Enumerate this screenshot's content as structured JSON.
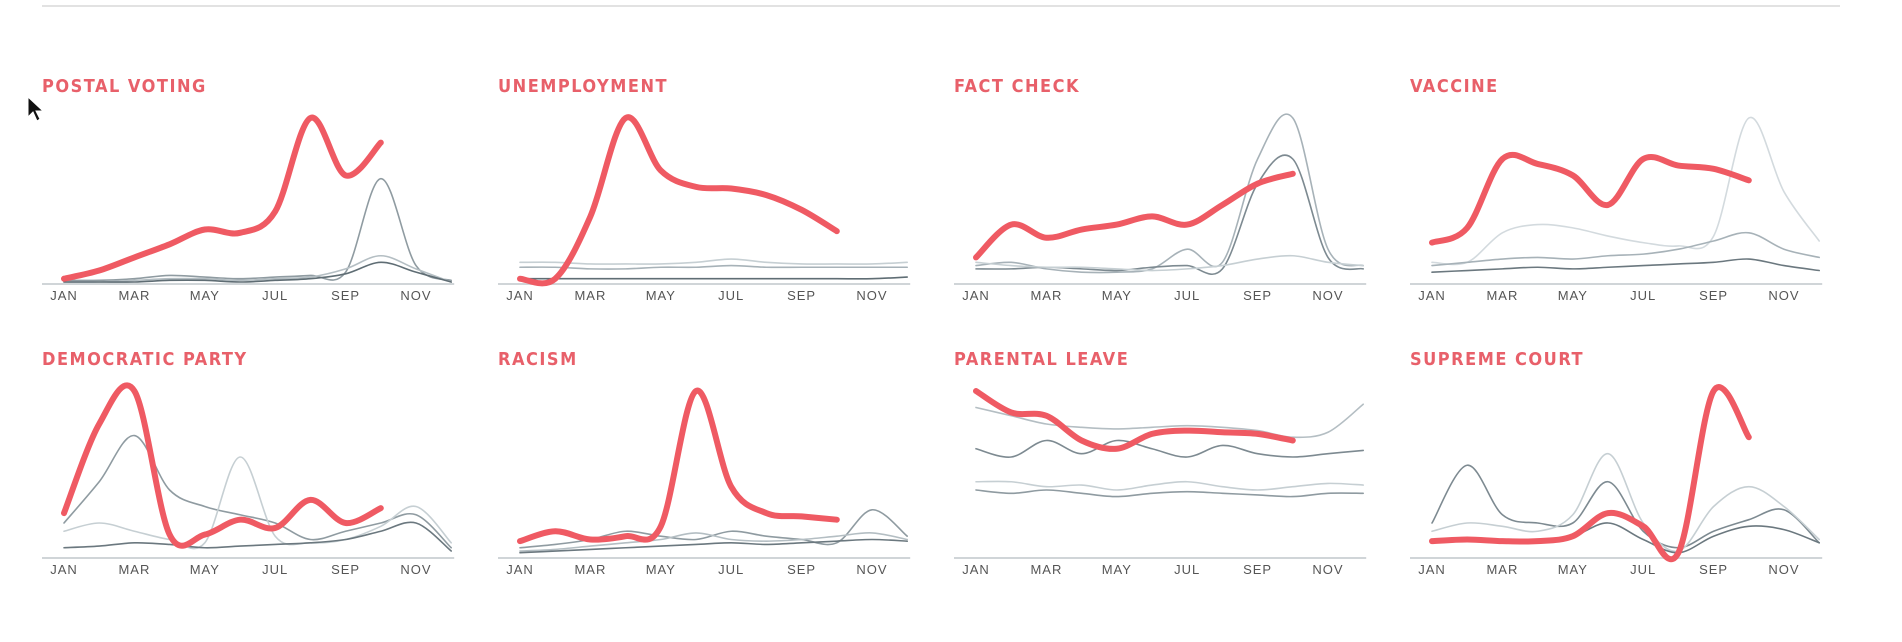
{
  "chart_data": [
    {
      "type": "line",
      "title": "POSTAL VOTING",
      "categories": [
        "JAN",
        null,
        "MAR",
        null,
        "MAY",
        null,
        "JUL",
        null,
        "SEP",
        null,
        "NOV",
        null
      ],
      "ylim": [
        0,
        100
      ],
      "series": [
        {
          "color": "#8f9ba1",
          "values": [
            1,
            1,
            2,
            4,
            3,
            2,
            3,
            4,
            6,
            63,
            10,
            1
          ]
        },
        {
          "color": "#b4bec3",
          "values": [
            0,
            0,
            1,
            2,
            2,
            1,
            2,
            3,
            8,
            16,
            8,
            0
          ]
        },
        {
          "color": "#5f6d74",
          "values": [
            0,
            0,
            0,
            1,
            1,
            0,
            1,
            2,
            5,
            12,
            6,
            0
          ]
        },
        {
          "color": "#ef5a63",
          "values": [
            2,
            7,
            15,
            23,
            32,
            30,
            43,
            100,
            65,
            85,
            null,
            null
          ]
        }
      ]
    },
    {
      "type": "line",
      "title": "UNEMPLOYMENT",
      "categories": [
        "JAN",
        null,
        "MAR",
        null,
        "MAY",
        null,
        "JUL",
        null,
        "SEP",
        null,
        "NOV",
        null
      ],
      "ylim": [
        0,
        100
      ],
      "series": [
        {
          "color": "#c6cfd3",
          "values": [
            12,
            12,
            11,
            11,
            11,
            12,
            14,
            12,
            11,
            11,
            11,
            12
          ]
        },
        {
          "color": "#a7b2b8",
          "values": [
            9,
            9,
            8,
            8,
            9,
            9,
            10,
            9,
            9,
            9,
            9,
            9
          ]
        },
        {
          "color": "#5f6d74",
          "values": [
            2,
            2,
            2,
            2,
            2,
            2,
            2,
            2,
            2,
            2,
            2,
            3
          ]
        },
        {
          "color": "#ef5a63",
          "values": [
            2,
            2,
            40,
            100,
            68,
            58,
            57,
            53,
            44,
            31,
            null,
            null
          ]
        }
      ]
    },
    {
      "type": "line",
      "title": "FACT CHECK",
      "categories": [
        "JAN",
        null,
        "MAR",
        null,
        "MAY",
        null,
        "JUL",
        null,
        "SEP",
        null,
        "NOV",
        null
      ],
      "ylim": [
        0,
        100
      ],
      "series": [
        {
          "color": "#a7b2b8",
          "values": [
            10,
            12,
            8,
            6,
            6,
            8,
            20,
            12,
            75,
            100,
            20,
            10
          ]
        },
        {
          "color": "#7d8a91",
          "values": [
            8,
            8,
            9,
            8,
            7,
            9,
            10,
            8,
            60,
            75,
            15,
            8
          ]
        },
        {
          "color": "#c6cfd3",
          "values": [
            12,
            10,
            9,
            9,
            8,
            7,
            8,
            10,
            14,
            16,
            12,
            10
          ]
        },
        {
          "color": "#ef5a63",
          "values": [
            15,
            35,
            27,
            32,
            35,
            40,
            35,
            47,
            60,
            66,
            null,
            null
          ]
        }
      ]
    },
    {
      "type": "line",
      "title": "VACCINE",
      "categories": [
        "JAN",
        null,
        "MAR",
        null,
        "MAY",
        null,
        "JUL",
        null,
        "SEP",
        null,
        "NOV",
        null
      ],
      "ylim": [
        0,
        100
      ],
      "series": [
        {
          "color": "#d3dade",
          "values": [
            12,
            12,
            30,
            35,
            33,
            28,
            24,
            22,
            28,
            100,
            55,
            25
          ]
        },
        {
          "color": "#a7b2b8",
          "values": [
            10,
            12,
            14,
            15,
            14,
            16,
            17,
            20,
            25,
            30,
            20,
            15
          ]
        },
        {
          "color": "#6b787f",
          "values": [
            6,
            7,
            8,
            9,
            8,
            9,
            10,
            11,
            12,
            14,
            10,
            7
          ]
        },
        {
          "color": "#ef5a63",
          "values": [
            24,
            33,
            75,
            72,
            65,
            47,
            75,
            71,
            69,
            62,
            null,
            null
          ]
        }
      ]
    },
    {
      "type": "line",
      "title": "DEMOCRATIC PARTY",
      "categories": [
        "JAN",
        null,
        "MAR",
        null,
        "MAY",
        null,
        "JUL",
        null,
        "SEP",
        null,
        "NOV",
        null
      ],
      "ylim": [
        0,
        100
      ],
      "series": [
        {
          "color": "#8f9ba1",
          "values": [
            20,
            45,
            73,
            40,
            30,
            25,
            20,
            10,
            15,
            20,
            25,
            5
          ]
        },
        {
          "color": "#c6cfd3",
          "values": [
            15,
            20,
            15,
            10,
            8,
            60,
            12,
            8,
            10,
            18,
            30,
            8
          ]
        },
        {
          "color": "#6b787f",
          "values": [
            5,
            6,
            8,
            7,
            5,
            6,
            7,
            8,
            10,
            15,
            20,
            3
          ]
        },
        {
          "color": "#ef5a63",
          "values": [
            26,
            80,
            100,
            13,
            13,
            22,
            17,
            34,
            20,
            29,
            null,
            null
          ]
        }
      ]
    },
    {
      "type": "line",
      "title": "RACISM",
      "categories": [
        "JAN",
        null,
        "MAR",
        null,
        "MAY",
        null,
        "JUL",
        null,
        "SEP",
        null,
        "NOV",
        null
      ],
      "ylim": [
        0,
        100
      ],
      "series": [
        {
          "color": "#8f9ba1",
          "values": [
            5,
            7,
            10,
            15,
            12,
            10,
            15,
            12,
            10,
            8,
            28,
            12
          ]
        },
        {
          "color": "#b4bec3",
          "values": [
            3,
            4,
            6,
            8,
            10,
            14,
            10,
            9,
            10,
            12,
            14,
            10
          ]
        },
        {
          "color": "#6b787f",
          "values": [
            2,
            3,
            4,
            5,
            6,
            7,
            8,
            7,
            8,
            9,
            10,
            9
          ]
        },
        {
          "color": "#ef5a63",
          "values": [
            9,
            15,
            10,
            12,
            18,
            100,
            42,
            26,
            24,
            22,
            null,
            null
          ]
        }
      ]
    },
    {
      "type": "line",
      "title": "PARENTAL LEAVE",
      "categories": [
        "JAN",
        null,
        "MAR",
        null,
        "MAY",
        null,
        "JUL",
        null,
        "SEP",
        null,
        "NOV",
        null
      ],
      "ylim": [
        0,
        100
      ],
      "series": [
        {
          "color": "#b4bec3",
          "values": [
            90,
            85,
            80,
            78,
            77,
            78,
            79,
            78,
            76,
            72,
            75,
            92
          ]
        },
        {
          "color": "#7d8a91",
          "values": [
            65,
            60,
            70,
            62,
            70,
            65,
            60,
            67,
            62,
            60,
            62,
            64
          ]
        },
        {
          "color": "#c6cfd3",
          "values": [
            45,
            45,
            42,
            43,
            40,
            43,
            45,
            42,
            40,
            42,
            44,
            43
          ]
        },
        {
          "color": "#8f9ba1",
          "values": [
            40,
            38,
            40,
            38,
            36,
            38,
            39,
            38,
            37,
            36,
            38,
            38
          ]
        },
        {
          "color": "#ef5a63",
          "values": [
            100,
            87,
            85,
            70,
            65,
            74,
            76,
            75,
            74,
            70,
            null,
            null
          ]
        }
      ]
    },
    {
      "type": "line",
      "title": "SUPREME COURT",
      "categories": [
        "JAN",
        null,
        "MAR",
        null,
        "MAY",
        null,
        "JUL",
        null,
        "SEP",
        null,
        "NOV",
        null
      ],
      "ylim": [
        0,
        100
      ],
      "series": [
        {
          "color": "#7d8a91",
          "values": [
            20,
            55,
            25,
            20,
            20,
            45,
            15,
            5,
            15,
            22,
            28,
            8
          ]
        },
        {
          "color": "#c6cfd3",
          "values": [
            15,
            20,
            18,
            15,
            25,
            62,
            20,
            3,
            30,
            42,
            30,
            10
          ]
        },
        {
          "color": "#6b787f",
          "values": [
            8,
            10,
            10,
            10,
            12,
            20,
            10,
            2,
            12,
            18,
            16,
            8
          ]
        },
        {
          "color": "#ef5a63",
          "values": [
            9,
            10,
            9,
            9,
            12,
            26,
            18,
            2,
            100,
            72,
            null,
            null
          ]
        }
      ]
    }
  ]
}
